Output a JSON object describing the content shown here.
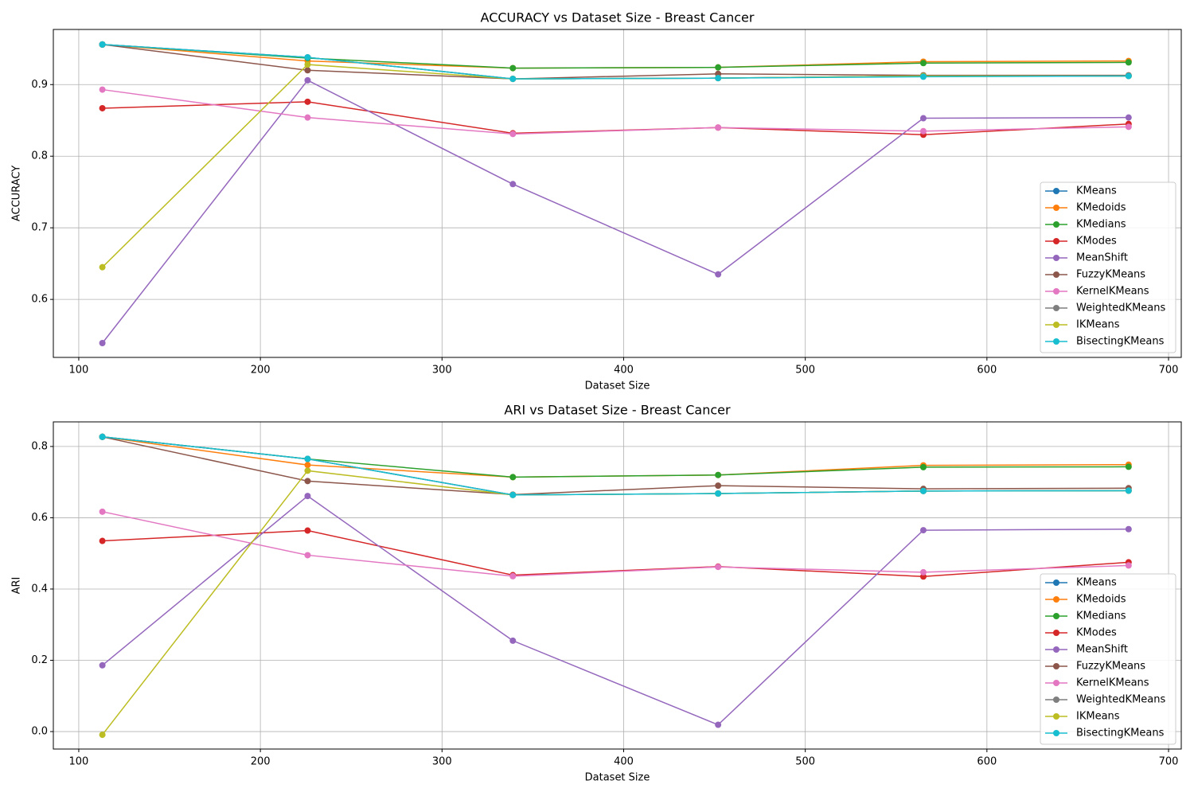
{
  "chart_data": [
    {
      "type": "line",
      "title": "ACCURACY vs Dataset Size - Breast Cancer",
      "xlabel": "Dataset Size",
      "ylabel": "ACCURACY",
      "x": [
        113,
        226,
        339,
        452,
        565,
        678
      ],
      "xlim": [
        86,
        707
      ],
      "ylim": [
        0.519,
        0.977
      ],
      "xticks": [
        100,
        200,
        300,
        400,
        500,
        600,
        700
      ],
      "yticks": [
        0.6,
        0.7,
        0.8,
        0.9
      ],
      "grid": true,
      "legend": "lower right",
      "series": [
        {
          "name": "KMeans",
          "color": "#1f77b4",
          "values": [
            0.956,
            0.938,
            0.908,
            0.909,
            0.912,
            0.912
          ]
        },
        {
          "name": "KMedoids",
          "color": "#ff7f0e",
          "values": [
            0.956,
            0.933,
            0.923,
            0.924,
            0.932,
            0.933
          ]
        },
        {
          "name": "KMedians",
          "color": "#2ca02c",
          "values": [
            0.956,
            0.937,
            0.923,
            0.924,
            0.93,
            0.931
          ]
        },
        {
          "name": "KModes",
          "color": "#d62728",
          "values": [
            0.867,
            0.876,
            0.832,
            0.84,
            0.83,
            0.845
          ]
        },
        {
          "name": "MeanShift",
          "color": "#9467bd",
          "values": [
            0.539,
            0.906,
            0.761,
            0.635,
            0.853,
            0.854
          ]
        },
        {
          "name": "FuzzyKMeans",
          "color": "#8c564b",
          "values": [
            0.956,
            0.92,
            0.908,
            0.915,
            0.913,
            0.913
          ]
        },
        {
          "name": "KernelKMeans",
          "color": "#e377c2",
          "values": [
            0.893,
            0.854,
            0.831,
            0.84,
            0.835,
            0.841
          ]
        },
        {
          "name": "WeightedKMeans",
          "color": "#7f7f7f",
          "values": [
            0.956,
            0.938,
            0.908,
            0.909,
            0.912,
            0.912
          ]
        },
        {
          "name": "IKMeans",
          "color": "#bcbd22",
          "values": [
            0.645,
            0.928,
            0.908,
            0.909,
            0.912,
            0.912
          ]
        },
        {
          "name": "BisectingKMeans",
          "color": "#17becf",
          "values": [
            0.956,
            0.938,
            0.908,
            0.909,
            0.911,
            0.912
          ]
        }
      ]
    },
    {
      "type": "line",
      "title": "ARI vs Dataset Size - Breast Cancer",
      "xlabel": "Dataset Size",
      "ylabel": "ARI",
      "x": [
        113,
        226,
        339,
        452,
        565,
        678
      ],
      "xlim": [
        86,
        707
      ],
      "ylim": [
        -0.049,
        0.869
      ],
      "xticks": [
        100,
        200,
        300,
        400,
        500,
        600,
        700
      ],
      "yticks": [
        {
          "value": 0,
          "label": "0.0"
        },
        0.2,
        0.4,
        0.6,
        0.8
      ],
      "grid": true,
      "legend": "lower right",
      "series": [
        {
          "name": "KMeans",
          "color": "#1f77b4",
          "values": [
            0.827,
            0.765,
            0.664,
            0.668,
            0.675,
            0.676
          ]
        },
        {
          "name": "KMedoids",
          "color": "#ff7f0e",
          "values": [
            0.827,
            0.748,
            0.714,
            0.72,
            0.747,
            0.749
          ]
        },
        {
          "name": "KMedians",
          "color": "#2ca02c",
          "values": [
            0.827,
            0.765,
            0.714,
            0.72,
            0.742,
            0.743
          ]
        },
        {
          "name": "KModes",
          "color": "#d62728",
          "values": [
            0.535,
            0.564,
            0.439,
            0.463,
            0.435,
            0.475
          ]
        },
        {
          "name": "MeanShift",
          "color": "#9467bd",
          "values": [
            0.186,
            0.661,
            0.255,
            0.019,
            0.565,
            0.568
          ]
        },
        {
          "name": "FuzzyKMeans",
          "color": "#8c564b",
          "values": [
            0.827,
            0.703,
            0.665,
            0.69,
            0.681,
            0.683
          ]
        },
        {
          "name": "KernelKMeans",
          "color": "#e377c2",
          "values": [
            0.617,
            0.495,
            0.436,
            0.462,
            0.447,
            0.466
          ]
        },
        {
          "name": "WeightedKMeans",
          "color": "#7f7f7f",
          "values": [
            0.827,
            0.765,
            0.664,
            0.668,
            0.675,
            0.676
          ]
        },
        {
          "name": "IKMeans",
          "color": "#bcbd22",
          "values": [
            -0.009,
            0.732,
            0.664,
            0.668,
            0.675,
            0.676
          ]
        },
        {
          "name": "BisectingKMeans",
          "color": "#17becf",
          "values": [
            0.827,
            0.765,
            0.664,
            0.668,
            0.675,
            0.676
          ]
        }
      ]
    }
  ]
}
